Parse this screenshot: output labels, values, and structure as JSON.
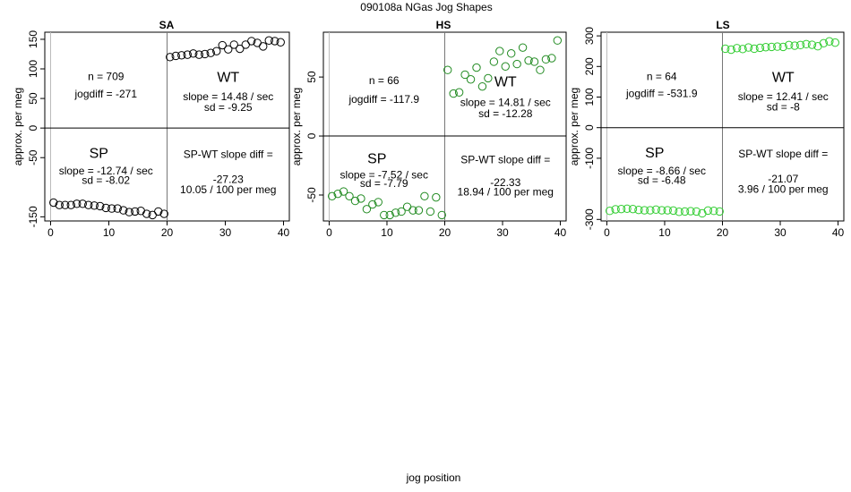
{
  "supertitle": "090108a   NGas Jog Shapes",
  "xlabel": "jog position",
  "chart_data": [
    {
      "type": "scatter",
      "title": "SA",
      "ylabel": "approx. per meg",
      "xlim": [
        -1,
        41
      ],
      "ylim": [
        -157,
        162
      ],
      "yticks": [
        -150,
        -50,
        0,
        50,
        100,
        150
      ],
      "xticks": [
        0,
        10,
        20,
        30,
        40
      ],
      "series_color": "#000000",
      "texts": {
        "n": "n = 709",
        "jogdiff": "jogdiff = -271",
        "wt": "WT",
        "wt_slope": "slope = 14.48 / sec",
        "wt_sd": "sd = -9.25",
        "sp": "SP",
        "sp_slope": "slope = -12.74 / sec",
        "sp_sd": "sd = -8.02",
        "diff_label": "SP-WT slope diff =",
        "diff_val": "-27.23",
        "diff_per": "10.05 / 100 per meg"
      },
      "x": [
        0.5,
        1.5,
        2.5,
        3.5,
        4.5,
        5.5,
        6.5,
        7.5,
        8.5,
        9.5,
        10.5,
        11.5,
        12.5,
        13.5,
        14.5,
        15.5,
        16.5,
        17.5,
        18.5,
        19.5,
        20.5,
        21.5,
        22.5,
        23.5,
        24.5,
        25.5,
        26.5,
        27.5,
        28.5,
        29.5,
        30.5,
        31.5,
        32.5,
        33.5,
        34.5,
        35.5,
        36.5,
        37.5,
        38.5,
        39.5
      ],
      "y": [
        -126,
        -130,
        -130,
        -130,
        -128,
        -128,
        -130,
        -131,
        -132,
        -135,
        -136,
        -136,
        -139,
        -142,
        -141,
        -140,
        -145,
        -147,
        -141,
        -145,
        120,
        122,
        123,
        124,
        126,
        124,
        125,
        127,
        130,
        140,
        133,
        141,
        134,
        141,
        147,
        144,
        138,
        148,
        147,
        145
      ]
    },
    {
      "type": "scatter",
      "title": "HS",
      "ylabel": "approx. per meg",
      "xlim": [
        -1,
        41
      ],
      "ylim": [
        -72,
        88
      ],
      "yticks": [
        -50,
        0,
        50
      ],
      "xticks": [
        0,
        10,
        20,
        30,
        40
      ],
      "series_color": "#228b22",
      "texts": {
        "n": "n = 66",
        "jogdiff": "jogdiff = -117.9",
        "wt": "WT",
        "wt_slope": "slope = 14.81 / sec",
        "wt_sd": "sd = -12.28",
        "sp": "SP",
        "sp_slope": "slope = -7.52 / sec",
        "sp_sd": "sd = -7.79",
        "diff_label": "SP-WT slope diff =",
        "diff_val": "-22.33",
        "diff_per": "18.94 / 100 per meg"
      },
      "x": [
        0.5,
        1.5,
        2.5,
        3.5,
        4.5,
        5.5,
        6.5,
        7.5,
        8.5,
        9.5,
        10.5,
        11.5,
        12.5,
        13.5,
        14.5,
        15.5,
        16.5,
        17.5,
        18.5,
        19.5,
        20.5,
        21.5,
        22.5,
        23.5,
        24.5,
        25.5,
        26.5,
        27.5,
        28.5,
        29.5,
        30.5,
        31.5,
        32.5,
        33.5,
        34.5,
        35.5,
        36.5,
        37.5,
        38.5,
        39.5
      ],
      "y": [
        -51,
        -49,
        -47,
        -51,
        -55,
        -53,
        -62,
        -58,
        -56,
        -67,
        -67,
        -65,
        -64,
        -60,
        -63,
        -63,
        -51,
        -64,
        -52,
        -67,
        56,
        36,
        37,
        52,
        48,
        58,
        42,
        49,
        63,
        72,
        59,
        70,
        61,
        75,
        64,
        63,
        56,
        65,
        66,
        81
      ]
    },
    {
      "type": "scatter",
      "title": "LS",
      "ylabel": "approx. per meg",
      "xlim": [
        -1,
        41
      ],
      "ylim": [
        -305,
        312
      ],
      "yticks": [
        -300,
        -100,
        0,
        100,
        200,
        300
      ],
      "xticks": [
        0,
        10,
        20,
        30,
        40
      ],
      "series_color": "#32cd32",
      "texts": {
        "n": "n = 64",
        "jogdiff": "jogdiff = -531.9",
        "wt": "WT",
        "wt_slope": "slope = 12.41 / sec",
        "wt_sd": "sd = -8",
        "sp": "SP",
        "sp_slope": "slope = -8.66 / sec",
        "sp_sd": "sd = -6.48",
        "diff_label": "SP-WT slope diff =",
        "diff_val": "-21.07",
        "diff_per": "3.96 / 100 per meg"
      },
      "x": [
        0.5,
        1.5,
        2.5,
        3.5,
        4.5,
        5.5,
        6.5,
        7.5,
        8.5,
        9.5,
        10.5,
        11.5,
        12.5,
        13.5,
        14.5,
        15.5,
        16.5,
        17.5,
        18.5,
        19.5,
        20.5,
        21.5,
        22.5,
        23.5,
        24.5,
        25.5,
        26.5,
        27.5,
        28.5,
        29.5,
        30.5,
        31.5,
        32.5,
        33.5,
        34.5,
        35.5,
        36.5,
        37.5,
        38.5,
        39.5
      ],
      "y": [
        -272,
        -267,
        -266,
        -265,
        -266,
        -269,
        -270,
        -270,
        -268,
        -270,
        -270,
        -271,
        -275,
        -274,
        -273,
        -274,
        -280,
        -271,
        -272,
        -274,
        258,
        255,
        260,
        257,
        262,
        258,
        261,
        263,
        264,
        265,
        264,
        270,
        268,
        270,
        273,
        271,
        266,
        276,
        282,
        278
      ]
    }
  ]
}
